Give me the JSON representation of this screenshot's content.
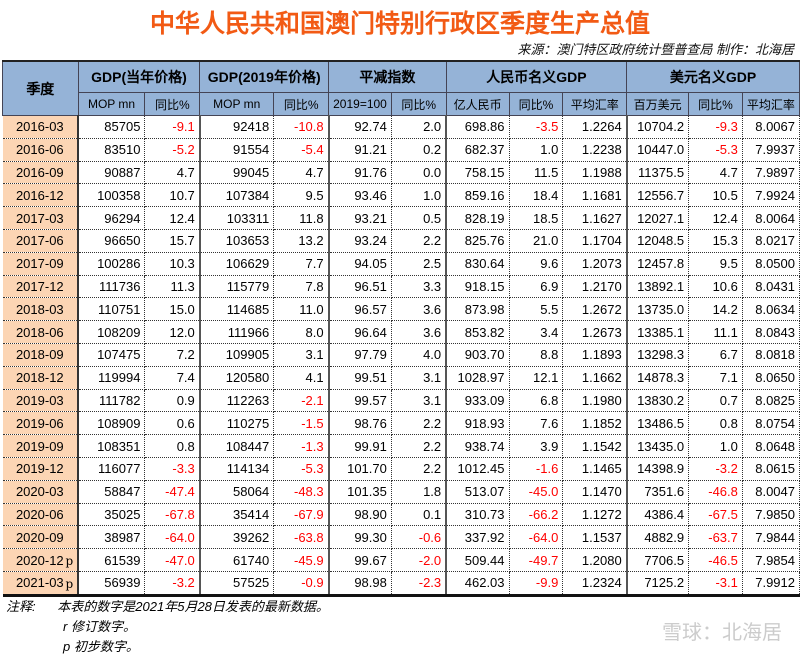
{
  "title": "中华人民共和国澳门特别行政区季度生产总值",
  "source": "来源：澳门特区政府统计暨普查局  制作：北海居",
  "header": {
    "quarter": "季度",
    "groups": [
      "GDP(当年价格)",
      "GDP(2019年价格)",
      "平减指数",
      "人民币名义GDP",
      "美元名义GDP"
    ],
    "sub": [
      "MOP mn",
      "同比%",
      "MOP mn",
      "同比%",
      "2019=100",
      "同比%",
      "亿人民币",
      "同比%",
      "平均汇率",
      "百万美元",
      "同比%",
      "平均汇率"
    ]
  },
  "rows": [
    {
      "q": "2016-03",
      "f": "",
      "v": [
        "85705",
        "-9.1",
        "92418",
        "-10.8",
        "92.74",
        "2.0",
        "698.86",
        "-3.5",
        "1.2264",
        "10704.2",
        "-9.3",
        "8.0067"
      ]
    },
    {
      "q": "2016-06",
      "f": "",
      "v": [
        "83510",
        "-5.2",
        "91554",
        "-5.4",
        "91.21",
        "0.2",
        "682.37",
        "1.0",
        "1.2238",
        "10447.0",
        "-5.3",
        "7.9937"
      ]
    },
    {
      "q": "2016-09",
      "f": "",
      "v": [
        "90887",
        "4.7",
        "99045",
        "4.7",
        "91.76",
        "0.0",
        "758.15",
        "11.5",
        "1.1988",
        "11375.5",
        "4.7",
        "7.9897"
      ]
    },
    {
      "q": "2016-12",
      "f": "",
      "v": [
        "100358",
        "10.7",
        "107384",
        "9.5",
        "93.46",
        "1.0",
        "859.16",
        "18.4",
        "1.1681",
        "12556.7",
        "10.5",
        "7.9924"
      ]
    },
    {
      "q": "2017-03",
      "f": "",
      "v": [
        "96294",
        "12.4",
        "103311",
        "11.8",
        "93.21",
        "0.5",
        "828.19",
        "18.5",
        "1.1627",
        "12027.1",
        "12.4",
        "8.0064"
      ]
    },
    {
      "q": "2017-06",
      "f": "",
      "v": [
        "96650",
        "15.7",
        "103653",
        "13.2",
        "93.24",
        "2.2",
        "825.76",
        "21.0",
        "1.1704",
        "12048.5",
        "15.3",
        "8.0217"
      ]
    },
    {
      "q": "2017-09",
      "f": "",
      "v": [
        "100286",
        "10.3",
        "106629",
        "7.7",
        "94.05",
        "2.5",
        "830.64",
        "9.6",
        "1.2073",
        "12457.8",
        "9.5",
        "8.0500"
      ]
    },
    {
      "q": "2017-12",
      "f": "",
      "v": [
        "111736",
        "11.3",
        "115779",
        "7.8",
        "96.51",
        "3.3",
        "918.15",
        "6.9",
        "1.2170",
        "13892.1",
        "10.6",
        "8.0431"
      ]
    },
    {
      "q": "2018-03",
      "f": "",
      "v": [
        "110751",
        "15.0",
        "114685",
        "11.0",
        "96.57",
        "3.6",
        "873.98",
        "5.5",
        "1.2672",
        "13735.0",
        "14.2",
        "8.0634"
      ]
    },
    {
      "q": "2018-06",
      "f": "",
      "v": [
        "108209",
        "12.0",
        "111966",
        "8.0",
        "96.64",
        "3.6",
        "853.82",
        "3.4",
        "1.2673",
        "13385.1",
        "11.1",
        "8.0843"
      ]
    },
    {
      "q": "2018-09",
      "f": "",
      "v": [
        "107475",
        "7.2",
        "109905",
        "3.1",
        "97.79",
        "4.0",
        "903.70",
        "8.8",
        "1.1893",
        "13298.3",
        "6.7",
        "8.0818"
      ]
    },
    {
      "q": "2018-12",
      "f": "",
      "v": [
        "119994",
        "7.4",
        "120580",
        "4.1",
        "99.51",
        "3.1",
        "1028.97",
        "12.1",
        "1.1662",
        "14878.3",
        "7.1",
        "8.0650"
      ]
    },
    {
      "q": "2019-03",
      "f": "",
      "v": [
        "111782",
        "0.9",
        "112263",
        "-2.1",
        "99.57",
        "3.1",
        "933.09",
        "6.8",
        "1.1980",
        "13830.2",
        "0.7",
        "8.0825"
      ]
    },
    {
      "q": "2019-06",
      "f": "",
      "v": [
        "108909",
        "0.6",
        "110275",
        "-1.5",
        "98.76",
        "2.2",
        "918.93",
        "7.6",
        "1.1852",
        "13486.5",
        "0.8",
        "8.0754"
      ]
    },
    {
      "q": "2019-09",
      "f": "",
      "v": [
        "108351",
        "0.8",
        "108447",
        "-1.3",
        "99.91",
        "2.2",
        "938.74",
        "3.9",
        "1.1542",
        "13435.0",
        "1.0",
        "8.0648"
      ]
    },
    {
      "q": "2019-12",
      "f": "",
      "v": [
        "116077",
        "-3.3",
        "114134",
        "-5.3",
        "101.70",
        "2.2",
        "1012.45",
        "-1.6",
        "1.1465",
        "14398.9",
        "-3.2",
        "8.0615"
      ]
    },
    {
      "q": "2020-03",
      "f": "",
      "v": [
        "58847",
        "-47.4",
        "58064",
        "-48.3",
        "101.35",
        "1.8",
        "513.07",
        "-45.0",
        "1.1470",
        "7351.6",
        "-46.8",
        "8.0047"
      ]
    },
    {
      "q": "2020-06",
      "f": "",
      "v": [
        "35025",
        "-67.8",
        "35414",
        "-67.9",
        "98.90",
        "0.1",
        "310.73",
        "-66.2",
        "1.1272",
        "4386.4",
        "-67.5",
        "7.9850"
      ]
    },
    {
      "q": "2020-09",
      "f": "",
      "v": [
        "38987",
        "-64.0",
        "39262",
        "-63.8",
        "99.30",
        "-0.6",
        "337.92",
        "-64.0",
        "1.1537",
        "4882.9",
        "-63.7",
        "7.9844"
      ]
    },
    {
      "q": "2020-12",
      "f": "p",
      "v": [
        "61539",
        "-47.0",
        "61740",
        "-45.9",
        "99.67",
        "-2.0",
        "509.44",
        "-49.7",
        "1.2080",
        "7706.5",
        "-46.5",
        "7.9854"
      ]
    },
    {
      "q": "2021-03",
      "f": "p",
      "v": [
        "56939",
        "-3.2",
        "57525",
        "-0.9",
        "98.98",
        "-2.3",
        "462.03",
        "-9.9",
        "1.2324",
        "7125.2",
        "-3.1",
        "7.9912"
      ]
    }
  ],
  "notes": {
    "label": "注释:",
    "lines": [
      "本表的数字是2021年5月28日发表的最新数据。",
      "r  修订数字。",
      "p  初步数字。"
    ]
  },
  "watermark": "雪球：北海居",
  "colors": {
    "title": "#f25a14",
    "header": "#95b3d7",
    "date": "#fcd5b4",
    "negative": "#ff0000"
  }
}
